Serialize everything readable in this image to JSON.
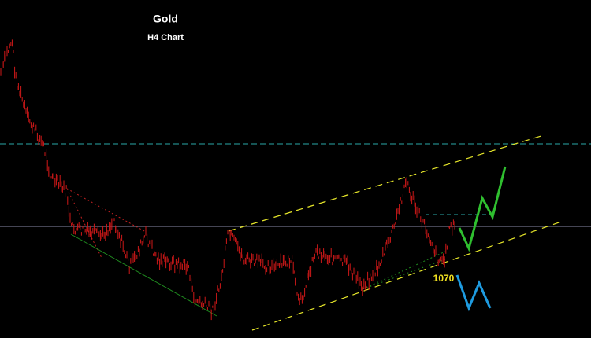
{
  "chart_data": {
    "type": "line",
    "title": "Gold",
    "subtitle": "H4 Chart",
    "annotations": [
      "1070"
    ]
  }
}
